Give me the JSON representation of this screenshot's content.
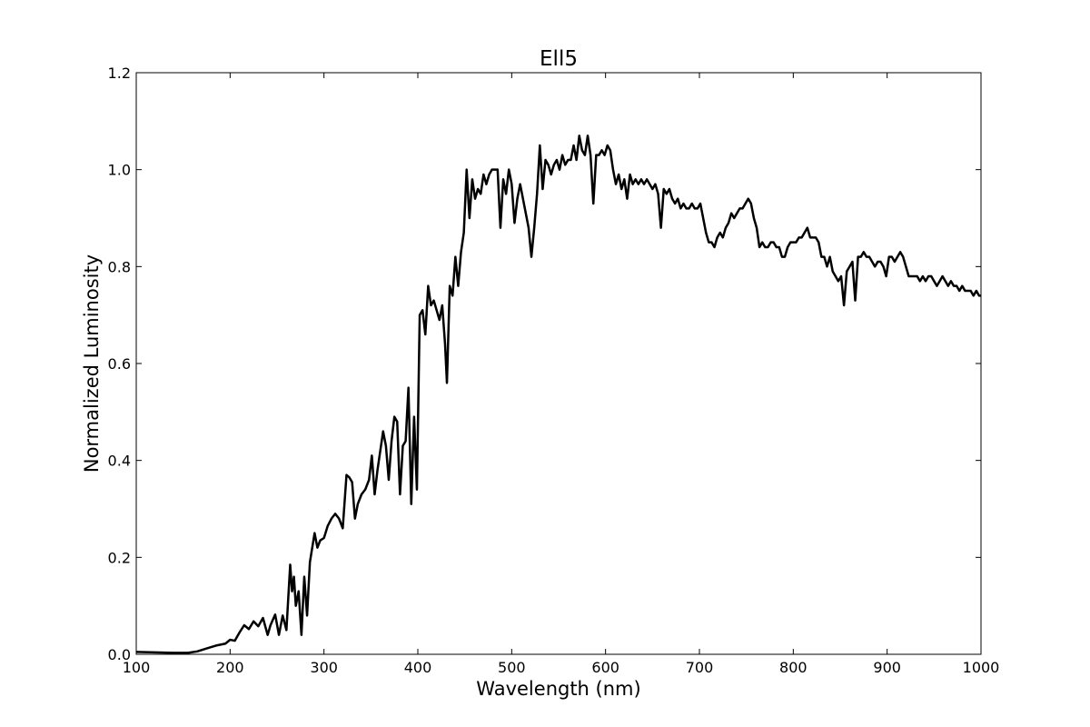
{
  "chart_data": {
    "type": "line",
    "title": "Ell5",
    "xlabel": "Wavelength (nm)",
    "ylabel": "Normalized Luminosity",
    "xlim": [
      100,
      1000
    ],
    "ylim": [
      0.0,
      1.2
    ],
    "grid": false,
    "x_ticks": [
      100,
      200,
      300,
      400,
      500,
      600,
      700,
      800,
      900,
      1000
    ],
    "x_tick_labels": [
      "100",
      "200",
      "300",
      "400",
      "500",
      "600",
      "700",
      "800",
      "900",
      "1000"
    ],
    "y_ticks": [
      0.0,
      0.2,
      0.4,
      0.6,
      0.8,
      1.0,
      1.2
    ],
    "y_tick_labels": [
      "0.0",
      "0.2",
      "0.4",
      "0.6",
      "0.8",
      "1.0",
      "1.2"
    ],
    "series": [
      {
        "name": "Ell5",
        "color": "#000000",
        "points": [
          [
            100,
            0.005
          ],
          [
            120,
            0.004
          ],
          [
            140,
            0.003
          ],
          [
            155,
            0.003
          ],
          [
            165,
            0.006
          ],
          [
            175,
            0.012
          ],
          [
            185,
            0.018
          ],
          [
            195,
            0.022
          ],
          [
            200,
            0.03
          ],
          [
            205,
            0.028
          ],
          [
            210,
            0.045
          ],
          [
            215,
            0.06
          ],
          [
            220,
            0.052
          ],
          [
            225,
            0.068
          ],
          [
            230,
            0.058
          ],
          [
            235,
            0.075
          ],
          [
            240,
            0.04
          ],
          [
            243,
            0.06
          ],
          [
            248,
            0.082
          ],
          [
            252,
            0.04
          ],
          [
            256,
            0.08
          ],
          [
            260,
            0.05
          ],
          [
            264,
            0.185
          ],
          [
            266,
            0.13
          ],
          [
            268,
            0.16
          ],
          [
            270,
            0.1
          ],
          [
            273,
            0.13
          ],
          [
            276,
            0.04
          ],
          [
            279,
            0.16
          ],
          [
            282,
            0.08
          ],
          [
            285,
            0.19
          ],
          [
            290,
            0.25
          ],
          [
            293,
            0.22
          ],
          [
            296,
            0.235
          ],
          [
            300,
            0.24
          ],
          [
            304,
            0.265
          ],
          [
            308,
            0.28
          ],
          [
            312,
            0.29
          ],
          [
            316,
            0.28
          ],
          [
            320,
            0.26
          ],
          [
            324,
            0.37
          ],
          [
            327,
            0.365
          ],
          [
            330,
            0.355
          ],
          [
            333,
            0.28
          ],
          [
            336,
            0.31
          ],
          [
            340,
            0.33
          ],
          [
            344,
            0.34
          ],
          [
            348,
            0.36
          ],
          [
            351,
            0.41
          ],
          [
            354,
            0.33
          ],
          [
            357,
            0.38
          ],
          [
            360,
            0.42
          ],
          [
            363,
            0.46
          ],
          [
            366,
            0.43
          ],
          [
            369,
            0.36
          ],
          [
            372,
            0.44
          ],
          [
            375,
            0.49
          ],
          [
            378,
            0.48
          ],
          [
            381,
            0.33
          ],
          [
            384,
            0.43
          ],
          [
            387,
            0.44
          ],
          [
            390,
            0.55
          ],
          [
            393,
            0.31
          ],
          [
            396,
            0.49
          ],
          [
            399,
            0.34
          ],
          [
            402,
            0.7
          ],
          [
            405,
            0.71
          ],
          [
            408,
            0.66
          ],
          [
            411,
            0.76
          ],
          [
            414,
            0.72
          ],
          [
            417,
            0.73
          ],
          [
            420,
            0.71
          ],
          [
            423,
            0.69
          ],
          [
            426,
            0.72
          ],
          [
            429,
            0.64
          ],
          [
            431,
            0.56
          ],
          [
            434,
            0.76
          ],
          [
            437,
            0.74
          ],
          [
            440,
            0.82
          ],
          [
            443,
            0.76
          ],
          [
            446,
            0.83
          ],
          [
            449,
            0.87
          ],
          [
            452,
            1.0
          ],
          [
            455,
            0.9
          ],
          [
            458,
            0.98
          ],
          [
            461,
            0.94
          ],
          [
            464,
            0.96
          ],
          [
            467,
            0.95
          ],
          [
            470,
            0.99
          ],
          [
            473,
            0.97
          ],
          [
            476,
            0.99
          ],
          [
            479,
            1.0
          ],
          [
            482,
            1.0
          ],
          [
            485,
            1.0
          ],
          [
            488,
            0.88
          ],
          [
            491,
            0.98
          ],
          [
            494,
            0.95
          ],
          [
            497,
            1.0
          ],
          [
            500,
            0.97
          ],
          [
            503,
            0.89
          ],
          [
            506,
            0.94
          ],
          [
            509,
            0.97
          ],
          [
            512,
            0.94
          ],
          [
            515,
            0.91
          ],
          [
            518,
            0.88
          ],
          [
            521,
            0.82
          ],
          [
            524,
            0.88
          ],
          [
            527,
            0.95
          ],
          [
            530,
            1.05
          ],
          [
            533,
            0.96
          ],
          [
            536,
            1.02
          ],
          [
            539,
            1.01
          ],
          [
            542,
            0.99
          ],
          [
            545,
            1.01
          ],
          [
            548,
            1.02
          ],
          [
            551,
            1.0
          ],
          [
            554,
            1.03
          ],
          [
            557,
            1.01
          ],
          [
            560,
            1.02
          ],
          [
            563,
            1.02
          ],
          [
            566,
            1.05
          ],
          [
            569,
            1.02
          ],
          [
            572,
            1.07
          ],
          [
            575,
            1.04
          ],
          [
            578,
            1.03
          ],
          [
            581,
            1.07
          ],
          [
            584,
            1.03
          ],
          [
            587,
            0.93
          ],
          [
            590,
            1.03
          ],
          [
            593,
            1.03
          ],
          [
            596,
            1.04
          ],
          [
            599,
            1.03
          ],
          [
            602,
            1.05
          ],
          [
            605,
            1.04
          ],
          [
            608,
            1.0
          ],
          [
            611,
            0.97
          ],
          [
            614,
            0.99
          ],
          [
            617,
            0.96
          ],
          [
            620,
            0.98
          ],
          [
            623,
            0.94
          ],
          [
            626,
            0.99
          ],
          [
            629,
            0.97
          ],
          [
            632,
            0.98
          ],
          [
            635,
            0.97
          ],
          [
            638,
            0.98
          ],
          [
            641,
            0.97
          ],
          [
            644,
            0.98
          ],
          [
            647,
            0.97
          ],
          [
            650,
            0.96
          ],
          [
            653,
            0.97
          ],
          [
            656,
            0.95
          ],
          [
            659,
            0.88
          ],
          [
            662,
            0.96
          ],
          [
            665,
            0.95
          ],
          [
            668,
            0.96
          ],
          [
            671,
            0.94
          ],
          [
            674,
            0.93
          ],
          [
            677,
            0.94
          ],
          [
            680,
            0.92
          ],
          [
            683,
            0.93
          ],
          [
            686,
            0.92
          ],
          [
            689,
            0.92
          ],
          [
            692,
            0.93
          ],
          [
            695,
            0.92
          ],
          [
            698,
            0.92
          ],
          [
            701,
            0.93
          ],
          [
            704,
            0.9
          ],
          [
            707,
            0.87
          ],
          [
            710,
            0.85
          ],
          [
            713,
            0.85
          ],
          [
            716,
            0.84
          ],
          [
            719,
            0.86
          ],
          [
            722,
            0.87
          ],
          [
            725,
            0.86
          ],
          [
            728,
            0.88
          ],
          [
            731,
            0.89
          ],
          [
            734,
            0.91
          ],
          [
            737,
            0.9
          ],
          [
            740,
            0.91
          ],
          [
            743,
            0.92
          ],
          [
            746,
            0.92
          ],
          [
            749,
            0.93
          ],
          [
            752,
            0.94
          ],
          [
            755,
            0.93
          ],
          [
            758,
            0.9
          ],
          [
            761,
            0.88
          ],
          [
            764,
            0.84
          ],
          [
            767,
            0.85
          ],
          [
            770,
            0.84
          ],
          [
            773,
            0.84
          ],
          [
            776,
            0.85
          ],
          [
            779,
            0.85
          ],
          [
            782,
            0.84
          ],
          [
            785,
            0.84
          ],
          [
            788,
            0.82
          ],
          [
            791,
            0.82
          ],
          [
            794,
            0.84
          ],
          [
            797,
            0.85
          ],
          [
            800,
            0.85
          ],
          [
            803,
            0.85
          ],
          [
            806,
            0.86
          ],
          [
            809,
            0.86
          ],
          [
            812,
            0.87
          ],
          [
            815,
            0.88
          ],
          [
            818,
            0.86
          ],
          [
            821,
            0.86
          ],
          [
            824,
            0.86
          ],
          [
            827,
            0.85
          ],
          [
            830,
            0.82
          ],
          [
            833,
            0.82
          ],
          [
            836,
            0.8
          ],
          [
            839,
            0.82
          ],
          [
            842,
            0.79
          ],
          [
            845,
            0.78
          ],
          [
            848,
            0.77
          ],
          [
            851,
            0.78
          ],
          [
            854,
            0.72
          ],
          [
            857,
            0.79
          ],
          [
            860,
            0.8
          ],
          [
            863,
            0.81
          ],
          [
            866,
            0.73
          ],
          [
            869,
            0.82
          ],
          [
            872,
            0.82
          ],
          [
            875,
            0.83
          ],
          [
            878,
            0.82
          ],
          [
            881,
            0.82
          ],
          [
            884,
            0.81
          ],
          [
            887,
            0.8
          ],
          [
            890,
            0.81
          ],
          [
            893,
            0.81
          ],
          [
            896,
            0.8
          ],
          [
            899,
            0.78
          ],
          [
            902,
            0.82
          ],
          [
            905,
            0.82
          ],
          [
            908,
            0.81
          ],
          [
            911,
            0.82
          ],
          [
            914,
            0.83
          ],
          [
            917,
            0.82
          ],
          [
            920,
            0.8
          ],
          [
            923,
            0.78
          ],
          [
            926,
            0.78
          ],
          [
            929,
            0.78
          ],
          [
            932,
            0.78
          ],
          [
            935,
            0.77
          ],
          [
            938,
            0.78
          ],
          [
            941,
            0.77
          ],
          [
            944,
            0.78
          ],
          [
            947,
            0.78
          ],
          [
            950,
            0.77
          ],
          [
            953,
            0.76
          ],
          [
            956,
            0.77
          ],
          [
            959,
            0.78
          ],
          [
            962,
            0.77
          ],
          [
            965,
            0.76
          ],
          [
            968,
            0.77
          ],
          [
            971,
            0.76
          ],
          [
            974,
            0.76
          ],
          [
            977,
            0.75
          ],
          [
            980,
            0.76
          ],
          [
            983,
            0.75
          ],
          [
            986,
            0.75
          ],
          [
            989,
            0.75
          ],
          [
            992,
            0.74
          ],
          [
            995,
            0.75
          ],
          [
            998,
            0.74
          ],
          [
            1000,
            0.74
          ]
        ]
      }
    ]
  }
}
